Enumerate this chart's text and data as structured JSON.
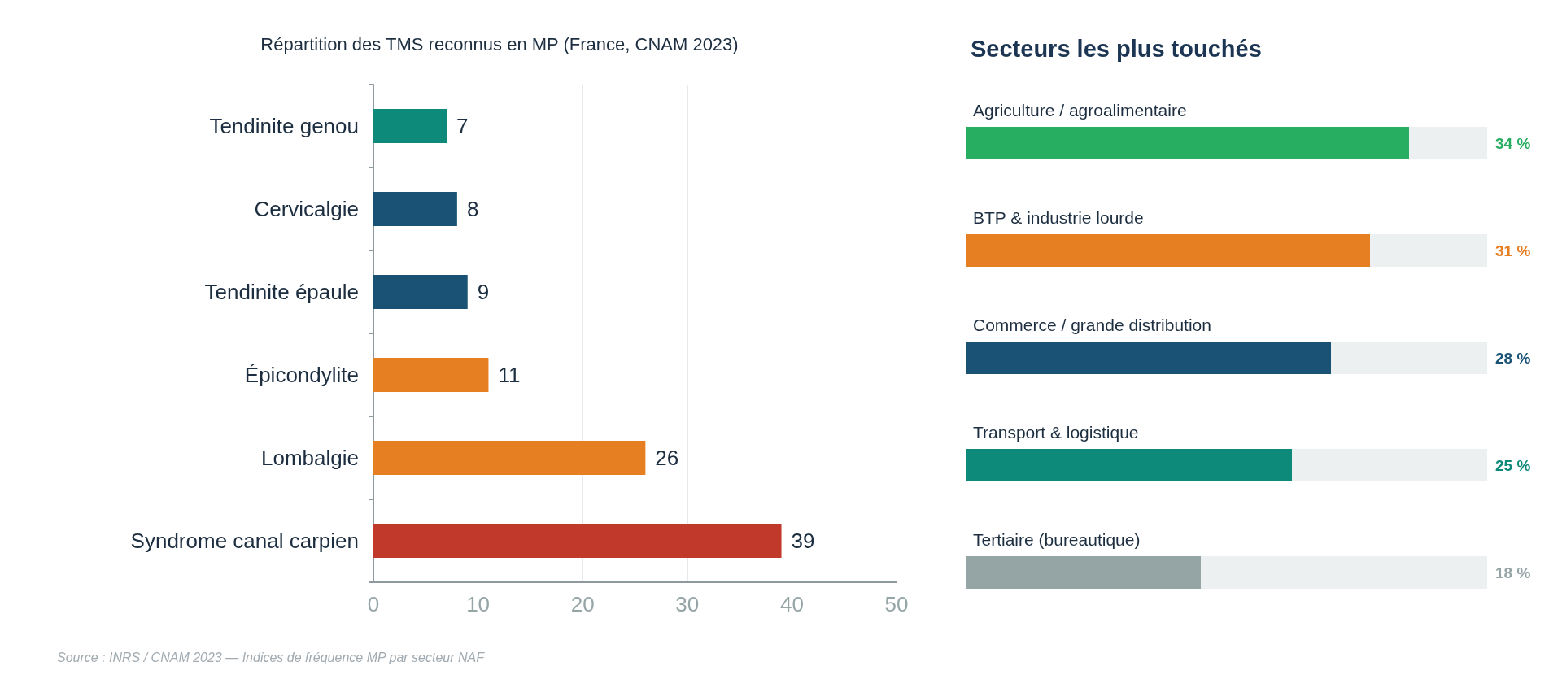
{
  "chart_data": [
    {
      "type": "bar",
      "orientation": "horizontal",
      "title": "Répartition des TMS reconnus en MP (France, CNAM 2023)",
      "categories": [
        "Tendinite genou",
        "Cervicalgie",
        "Tendinite épaule",
        "Épicondylite",
        "Lombalgie",
        "Syndrome canal carpien"
      ],
      "values": [
        7,
        8,
        9,
        11,
        26,
        39
      ],
      "colors": [
        "#0e8a7a",
        "#1a5276",
        "#1a5276",
        "#e67e22",
        "#e67e22",
        "#c0392b"
      ],
      "xlim": [
        0,
        50
      ],
      "xticks": [
        0,
        10,
        20,
        30,
        40,
        50
      ],
      "grid": "x",
      "data_labels": true,
      "annotations": [
        "Source : INRS / CNAM 2023 — Indices de fréquence MP par secteur NAF"
      ]
    },
    {
      "type": "bar",
      "orientation": "horizontal",
      "title": "Secteurs les plus touchés",
      "categories": [
        "Agriculture / agroalimentaire",
        "BTP & industrie lourde",
        "Commerce / grande distribution",
        "Transport & logistique",
        "Tertiaire (bureautique)"
      ],
      "values": [
        34,
        31,
        28,
        25,
        18
      ],
      "value_labels": [
        "34 %",
        "31 %",
        "28 %",
        "25 %",
        "18 %"
      ],
      "colors": [
        "#27ae60",
        "#e67e22",
        "#1a5276",
        "#0e8a7a",
        "#95a5a6"
      ],
      "xlim": [
        0,
        40
      ],
      "tick_labels": false,
      "grid": false
    }
  ]
}
